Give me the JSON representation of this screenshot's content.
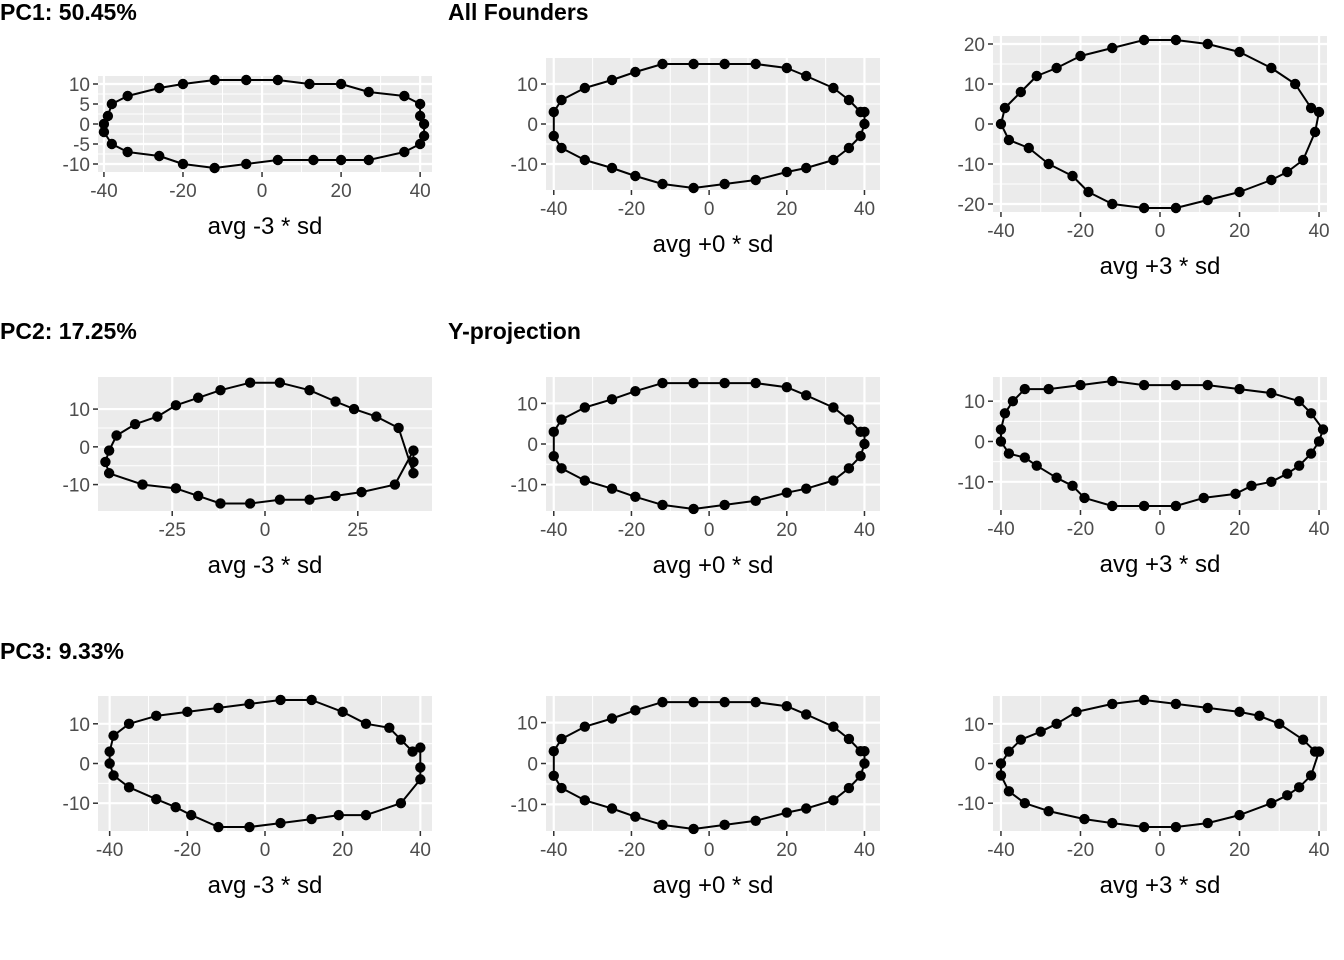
{
  "rows": [
    {
      "title": "PC1: 50.45%",
      "subtitle": "All Founders"
    },
    {
      "title": "PC2: 17.25%",
      "subtitle": "Y-projection"
    },
    {
      "title": "PC3: 9.33%",
      "subtitle": ""
    }
  ],
  "theme": {
    "panel_bg": "#ebebeb",
    "grid": "#ffffff",
    "line": "#000000",
    "point": "#000000",
    "tick_text": "#4d4d4d"
  },
  "chart_data": [
    {
      "type": "line",
      "row": 0,
      "col": 0,
      "xlabel": "avg -3 * sd",
      "xlim": [
        -41.5,
        43
      ],
      "ylim": [
        -12,
        12
      ],
      "xticks": [
        -40,
        -20,
        0,
        20,
        40
      ],
      "yticks": [
        -10,
        -5,
        0,
        5,
        10
      ],
      "x": [
        40,
        41,
        41,
        40,
        36,
        27,
        20,
        13,
        4,
        -4,
        -12,
        -20,
        -26,
        -34,
        -38,
        -40,
        -40,
        -39,
        -38,
        -34,
        -26,
        -20,
        -12,
        -4,
        4,
        12,
        20,
        27,
        36,
        40
      ],
      "y": [
        2,
        0,
        -3,
        -5,
        -7,
        -9,
        -9,
        -9,
        -9,
        -10,
        -11,
        -10,
        -8,
        -7,
        -5,
        -2,
        0,
        2,
        5,
        7,
        9,
        10,
        11,
        11,
        11,
        10,
        10,
        8,
        7,
        5
      ]
    },
    {
      "type": "line",
      "row": 0,
      "col": 1,
      "xlabel": "avg +0 * sd",
      "xlim": [
        -42,
        44
      ],
      "ylim": [
        -16.5,
        16.5
      ],
      "xticks": [
        -40,
        -20,
        0,
        20,
        40
      ],
      "yticks": [
        -10,
        0,
        10
      ],
      "x": [
        40,
        40,
        39,
        36,
        32,
        25,
        20,
        12,
        4,
        -4,
        -12,
        -19,
        -25,
        -32,
        -38,
        -40,
        -40,
        -38,
        -32,
        -25,
        -19,
        -12,
        -4,
        4,
        12,
        20,
        25,
        32,
        36,
        39
      ],
      "y": [
        3,
        0,
        -3,
        -6,
        -9,
        -11,
        -12,
        -14,
        -15,
        -16,
        -15,
        -13,
        -11,
        -9,
        -6,
        -3,
        3,
        6,
        9,
        11,
        13,
        15,
        15,
        15,
        15,
        14,
        12,
        9,
        6,
        3
      ]
    },
    {
      "type": "line",
      "row": 0,
      "col": 2,
      "xlabel": "avg +3 * sd",
      "xlim": [
        -42,
        42
      ],
      "ylim": [
        -22,
        22
      ],
      "xticks": [
        -40,
        -20,
        0,
        20,
        40
      ],
      "yticks": [
        -20,
        -10,
        0,
        10,
        20
      ],
      "x": [
        40,
        39,
        36,
        32,
        28,
        20,
        12,
        4,
        -4,
        -12,
        -18,
        -22,
        -28,
        -33,
        -38,
        -40,
        -39,
        -35,
        -31,
        -26,
        -20,
        -12,
        -4,
        4,
        12,
        20,
        28,
        34,
        38
      ],
      "y": [
        3,
        -2,
        -9,
        -12,
        -14,
        -17,
        -19,
        -21,
        -21,
        -20,
        -17,
        -13,
        -10,
        -6,
        -4,
        0,
        4,
        8,
        12,
        14,
        17,
        19,
        21,
        21,
        20,
        18,
        14,
        10,
        4
      ]
    },
    {
      "type": "line",
      "row": 1,
      "col": 0,
      "xlabel": "avg -3 * sd",
      "xticks": [
        -25,
        0,
        25
      ],
      "yticks": [
        -10,
        0,
        10
      ],
      "xlim": [
        -45,
        45
      ],
      "ylim": [
        -17,
        18.5
      ],
      "x": [
        40,
        40,
        40,
        35,
        26,
        19,
        12,
        4,
        -4,
        -12,
        -18,
        -24,
        -33,
        -42,
        -43,
        -42,
        -40,
        -35,
        -29,
        -24,
        -18,
        -12,
        -4,
        4,
        12,
        19,
        24,
        30,
        36
      ],
      "y": [
        -7,
        -4,
        -1,
        -10,
        -12,
        -13,
        -14,
        -14,
        -15,
        -15,
        -13,
        -11,
        -10,
        -7,
        -4,
        -1,
        3,
        6,
        8,
        11,
        13,
        15,
        17,
        17,
        15,
        12,
        10,
        8,
        5
      ]
    },
    {
      "type": "line",
      "row": 1,
      "col": 1,
      "xlabel": "avg +0 * sd",
      "xlim": [
        -42,
        44
      ],
      "ylim": [
        -16.5,
        16.5
      ],
      "xticks": [
        -40,
        -20,
        0,
        20,
        40
      ],
      "yticks": [
        -10,
        0,
        10
      ],
      "x": [
        40,
        40,
        39,
        36,
        32,
        25,
        20,
        12,
        4,
        -4,
        -12,
        -19,
        -25,
        -32,
        -38,
        -40,
        -40,
        -38,
        -32,
        -25,
        -19,
        -12,
        -4,
        4,
        12,
        20,
        25,
        32,
        36,
        39
      ],
      "y": [
        3,
        0,
        -3,
        -6,
        -9,
        -11,
        -12,
        -14,
        -15,
        -16,
        -15,
        -13,
        -11,
        -9,
        -6,
        -3,
        3,
        6,
        9,
        11,
        13,
        15,
        15,
        15,
        15,
        14,
        12,
        9,
        6,
        3
      ]
    },
    {
      "type": "line",
      "row": 1,
      "col": 2,
      "xlabel": "avg +3 * sd",
      "xlim": [
        -42,
        42
      ],
      "ylim": [
        -17,
        16
      ],
      "xticks": [
        -40,
        -20,
        0,
        20,
        40
      ],
      "yticks": [
        -10,
        0,
        10
      ],
      "x": [
        41,
        40,
        38,
        35,
        32,
        28,
        23,
        19,
        11,
        4,
        -4,
        -12,
        -19,
        -22,
        -26,
        -31,
        -34,
        -38,
        -40,
        -40,
        -39,
        -37,
        -34,
        -28,
        -20,
        -12,
        -4,
        4,
        12,
        20,
        28,
        35,
        38
      ],
      "y": [
        3,
        0,
        -3,
        -6,
        -8,
        -10,
        -11,
        -13,
        -14,
        -16,
        -16,
        -16,
        -14,
        -11,
        -9,
        -6,
        -4,
        -3,
        0,
        3,
        7,
        10,
        13,
        13,
        14,
        15,
        14,
        14,
        14,
        13,
        12,
        10,
        7
      ]
    },
    {
      "type": "line",
      "row": 2,
      "col": 0,
      "xlabel": "avg -3 * sd",
      "xlim": [
        -43,
        43
      ],
      "ylim": [
        -17,
        17
      ],
      "xticks": [
        -40,
        -20,
        0,
        20,
        40
      ],
      "yticks": [
        -10,
        0,
        10
      ],
      "x": [
        40,
        40,
        40,
        35,
        26,
        19,
        12,
        4,
        -4,
        -12,
        -19,
        -23,
        -28,
        -35,
        -39,
        -40,
        -40,
        -39,
        -35,
        -28,
        -20,
        -12,
        -4,
        4,
        12,
        20,
        26,
        32,
        35,
        38
      ],
      "y": [
        4,
        -1,
        -4,
        -10,
        -13,
        -13,
        -14,
        -15,
        -16,
        -16,
        -13,
        -11,
        -9,
        -6,
        -3,
        0,
        3,
        7,
        10,
        12,
        13,
        14,
        15,
        16,
        16,
        13,
        10,
        9,
        6,
        3
      ]
    },
    {
      "type": "line",
      "row": 2,
      "col": 1,
      "xlabel": "avg +0 * sd",
      "xlim": [
        -42,
        44
      ],
      "ylim": [
        -16.5,
        16.5
      ],
      "xticks": [
        -40,
        -20,
        0,
        20,
        40
      ],
      "yticks": [
        -10,
        0,
        10
      ],
      "x": [
        40,
        40,
        39,
        36,
        32,
        25,
        20,
        12,
        4,
        -4,
        -12,
        -19,
        -25,
        -32,
        -38,
        -40,
        -40,
        -38,
        -32,
        -25,
        -19,
        -12,
        -4,
        4,
        12,
        20,
        25,
        32,
        36,
        39
      ],
      "y": [
        3,
        0,
        -3,
        -6,
        -9,
        -11,
        -12,
        -14,
        -15,
        -16,
        -15,
        -13,
        -11,
        -9,
        -6,
        -3,
        3,
        6,
        9,
        11,
        13,
        15,
        15,
        15,
        15,
        14,
        12,
        9,
        6,
        3
      ]
    },
    {
      "type": "line",
      "row": 2,
      "col": 2,
      "xlabel": "avg +3 * sd",
      "xlim": [
        -42,
        42
      ],
      "ylim": [
        -17,
        17
      ],
      "xticks": [
        -40,
        -20,
        0,
        20,
        40
      ],
      "yticks": [
        -10,
        0,
        10
      ],
      "x": [
        40,
        38,
        35,
        32,
        28,
        20,
        12,
        4,
        -4,
        -12,
        -19,
        -28,
        -34,
        -38,
        -40,
        -40,
        -38,
        -35,
        -30,
        -26,
        -21,
        -12,
        -4,
        4,
        12,
        20,
        25,
        30,
        36,
        39
      ],
      "y": [
        3,
        -3,
        -6,
        -8,
        -10,
        -13,
        -15,
        -16,
        -16,
        -15,
        -14,
        -12,
        -10,
        -7,
        -3,
        0,
        3,
        6,
        8,
        10,
        13,
        15,
        16,
        15,
        14,
        13,
        12,
        10,
        6,
        3
      ]
    }
  ]
}
